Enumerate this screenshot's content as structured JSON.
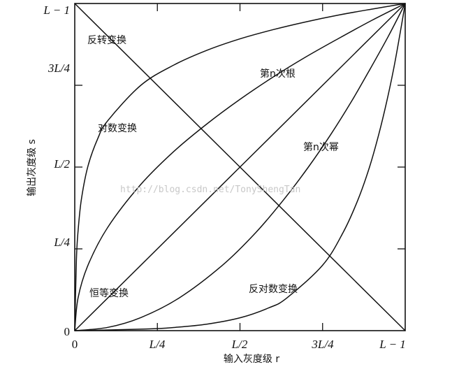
{
  "chart_data": {
    "type": "line",
    "xlabel": "输入灰度级 r",
    "ylabel": "输出灰度级 s",
    "xlim": [
      0,
      1
    ],
    "ylim": [
      0,
      1
    ],
    "x_ticks": [
      "0",
      "L/4",
      "L/2",
      "3L/4",
      "L − 1"
    ],
    "y_ticks": [
      "0",
      "L/4",
      "L/2",
      "3L/4",
      "L − 1"
    ],
    "grid": false,
    "series": [
      {
        "name": "反转变换",
        "x": [
          0,
          1
        ],
        "y": [
          1,
          0
        ]
      },
      {
        "name": "恒等变换",
        "x": [
          0,
          1
        ],
        "y": [
          0,
          1
        ]
      },
      {
        "name": "对数变换",
        "x": [
          0,
          0.005,
          0.01,
          0.02,
          0.04,
          0.07,
          0.1,
          0.2,
          0.3,
          0.4,
          0.5,
          0.6,
          0.7,
          0.8,
          0.9,
          1
        ],
        "y": [
          0,
          0.217,
          0.304,
          0.401,
          0.503,
          0.588,
          0.642,
          0.75,
          0.812,
          0.857,
          0.892,
          0.92,
          0.944,
          0.965,
          0.983,
          1
        ]
      },
      {
        "name": "反对数变换",
        "x": [
          0,
          0.217,
          0.304,
          0.401,
          0.503,
          0.588,
          0.642,
          0.75,
          0.812,
          0.857,
          0.892,
          0.92,
          0.944,
          0.965,
          0.983,
          1
        ],
        "y": [
          0,
          0.005,
          0.01,
          0.02,
          0.04,
          0.07,
          0.1,
          0.2,
          0.3,
          0.4,
          0.5,
          0.6,
          0.7,
          0.8,
          0.9,
          1
        ]
      },
      {
        "name": "第n次根",
        "x": [
          0,
          0.01,
          0.04,
          0.1,
          0.2,
          0.3,
          0.4,
          0.5,
          0.6,
          0.7,
          0.8,
          0.9,
          1
        ],
        "y": [
          0,
          0.1,
          0.2,
          0.316,
          0.447,
          0.548,
          0.632,
          0.707,
          0.775,
          0.837,
          0.894,
          0.949,
          1
        ]
      },
      {
        "name": "第n次幂",
        "x": [
          0,
          0.1,
          0.2,
          0.316,
          0.447,
          0.548,
          0.632,
          0.707,
          0.775,
          0.837,
          0.894,
          0.949,
          1
        ],
        "y": [
          0,
          0.01,
          0.04,
          0.1,
          0.2,
          0.3,
          0.4,
          0.5,
          0.6,
          0.7,
          0.8,
          0.9,
          1
        ]
      }
    ],
    "annotations": [
      "反转变换",
      "对数变换",
      "第n次根",
      "第n次幂",
      "恒等变换",
      "反对数变换"
    ]
  },
  "watermark": "http://blog.csdn.net/TonyShengTan"
}
